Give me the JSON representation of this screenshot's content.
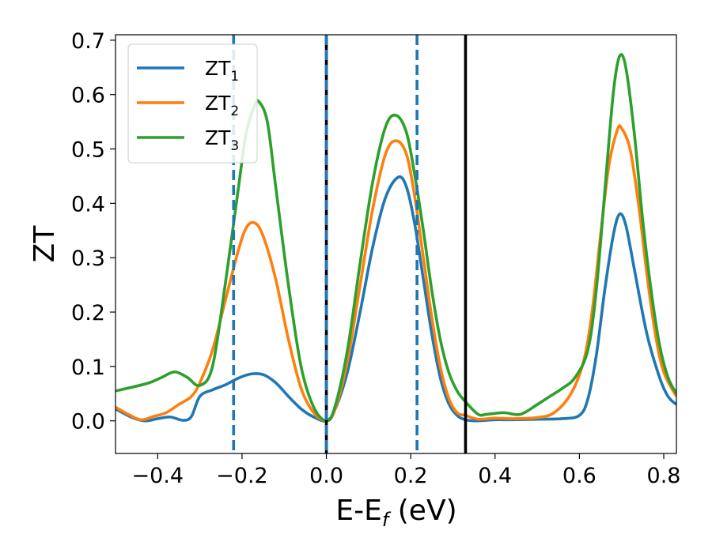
{
  "chart_data": {
    "type": "line",
    "xlabel": "E-E",
    "xlabel_sub": "f",
    "xlabel_unit": " (eV)",
    "ylabel": "ZT",
    "xlim": [
      -0.5,
      0.83
    ],
    "ylim": [
      -0.06,
      0.71
    ],
    "xticks": [
      -0.4,
      -0.2,
      0.0,
      0.2,
      0.4,
      0.6,
      0.8
    ],
    "xtick_labels": [
      "−0.4",
      "−0.2",
      "0.0",
      "0.2",
      "0.4",
      "0.6",
      "0.8"
    ],
    "yticks": [
      0.0,
      0.1,
      0.2,
      0.3,
      0.4,
      0.5,
      0.6,
      0.7
    ],
    "ytick_labels": [
      "0.0",
      "0.1",
      "0.2",
      "0.3",
      "0.4",
      "0.5",
      "0.6",
      "0.7"
    ],
    "grid": false,
    "legend_position": "top-left",
    "series": [
      {
        "name": "ZT",
        "name_sub": "1",
        "color": "#1f77b4",
        "points": [
          [
            -0.5,
            0.022
          ],
          [
            -0.46,
            0.006
          ],
          [
            -0.43,
            0.0
          ],
          [
            -0.4,
            0.004
          ],
          [
            -0.37,
            0.007
          ],
          [
            -0.34,
            0.001
          ],
          [
            -0.32,
            0.008
          ],
          [
            -0.3,
            0.045
          ],
          [
            -0.27,
            0.057
          ],
          [
            -0.24,
            0.066
          ],
          [
            -0.21,
            0.078
          ],
          [
            -0.18,
            0.086
          ],
          [
            -0.15,
            0.085
          ],
          [
            -0.12,
            0.07
          ],
          [
            -0.09,
            0.045
          ],
          [
            -0.06,
            0.022
          ],
          [
            -0.03,
            0.007
          ],
          [
            0.0,
            0.0
          ],
          [
            0.02,
            0.02
          ],
          [
            0.05,
            0.09
          ],
          [
            0.08,
            0.2
          ],
          [
            0.11,
            0.32
          ],
          [
            0.14,
            0.41
          ],
          [
            0.17,
            0.448
          ],
          [
            0.19,
            0.43
          ],
          [
            0.21,
            0.36
          ],
          [
            0.23,
            0.26
          ],
          [
            0.25,
            0.16
          ],
          [
            0.27,
            0.08
          ],
          [
            0.29,
            0.032
          ],
          [
            0.31,
            0.01
          ],
          [
            0.33,
            0.002
          ],
          [
            0.36,
            0.0
          ],
          [
            0.4,
            0.002
          ],
          [
            0.44,
            0.002
          ],
          [
            0.5,
            0.003
          ],
          [
            0.56,
            0.004
          ],
          [
            0.6,
            0.01
          ],
          [
            0.62,
            0.04
          ],
          [
            0.64,
            0.12
          ],
          [
            0.66,
            0.24
          ],
          [
            0.68,
            0.34
          ],
          [
            0.695,
            0.38
          ],
          [
            0.71,
            0.36
          ],
          [
            0.73,
            0.28
          ],
          [
            0.76,
            0.16
          ],
          [
            0.79,
            0.08
          ],
          [
            0.81,
            0.045
          ],
          [
            0.83,
            0.03
          ]
        ]
      },
      {
        "name": "ZT",
        "name_sub": "2",
        "color": "#ff7f0e",
        "points": [
          [
            -0.5,
            0.025
          ],
          [
            -0.47,
            0.012
          ],
          [
            -0.44,
            0.002
          ],
          [
            -0.41,
            0.008
          ],
          [
            -0.38,
            0.015
          ],
          [
            -0.35,
            0.03
          ],
          [
            -0.32,
            0.045
          ],
          [
            -0.3,
            0.07
          ],
          [
            -0.27,
            0.13
          ],
          [
            -0.24,
            0.22
          ],
          [
            -0.21,
            0.31
          ],
          [
            -0.19,
            0.355
          ],
          [
            -0.17,
            0.364
          ],
          [
            -0.15,
            0.34
          ],
          [
            -0.12,
            0.26
          ],
          [
            -0.09,
            0.15
          ],
          [
            -0.06,
            0.06
          ],
          [
            -0.03,
            0.015
          ],
          [
            0.0,
            0.0
          ],
          [
            0.02,
            0.02
          ],
          [
            0.05,
            0.11
          ],
          [
            0.08,
            0.25
          ],
          [
            0.11,
            0.39
          ],
          [
            0.14,
            0.49
          ],
          [
            0.165,
            0.515
          ],
          [
            0.19,
            0.49
          ],
          [
            0.21,
            0.41
          ],
          [
            0.23,
            0.3
          ],
          [
            0.25,
            0.19
          ],
          [
            0.27,
            0.1
          ],
          [
            0.29,
            0.042
          ],
          [
            0.31,
            0.015
          ],
          [
            0.33,
            0.01
          ],
          [
            0.36,
            0.003
          ],
          [
            0.4,
            0.005
          ],
          [
            0.44,
            0.004
          ],
          [
            0.5,
            0.006
          ],
          [
            0.54,
            0.015
          ],
          [
            0.58,
            0.05
          ],
          [
            0.61,
            0.11
          ],
          [
            0.63,
            0.2
          ],
          [
            0.65,
            0.34
          ],
          [
            0.67,
            0.47
          ],
          [
            0.69,
            0.535
          ],
          [
            0.7,
            0.538
          ],
          [
            0.72,
            0.5
          ],
          [
            0.74,
            0.4
          ],
          [
            0.76,
            0.27
          ],
          [
            0.78,
            0.16
          ],
          [
            0.8,
            0.09
          ],
          [
            0.83,
            0.045
          ]
        ]
      },
      {
        "name": "ZT",
        "name_sub": "3",
        "color": "#2ca02c",
        "points": [
          [
            -0.5,
            0.055
          ],
          [
            -0.46,
            0.062
          ],
          [
            -0.42,
            0.07
          ],
          [
            -0.39,
            0.08
          ],
          [
            -0.36,
            0.09
          ],
          [
            -0.33,
            0.08
          ],
          [
            -0.3,
            0.065
          ],
          [
            -0.27,
            0.1
          ],
          [
            -0.24,
            0.25
          ],
          [
            -0.21,
            0.42
          ],
          [
            -0.19,
            0.53
          ],
          [
            -0.17,
            0.58
          ],
          [
            -0.16,
            0.587
          ],
          [
            -0.14,
            0.55
          ],
          [
            -0.12,
            0.43
          ],
          [
            -0.09,
            0.25
          ],
          [
            -0.06,
            0.1
          ],
          [
            -0.03,
            0.025
          ],
          [
            0.0,
            0.0
          ],
          [
            0.02,
            0.025
          ],
          [
            0.05,
            0.13
          ],
          [
            0.08,
            0.29
          ],
          [
            0.11,
            0.44
          ],
          [
            0.14,
            0.54
          ],
          [
            0.165,
            0.562
          ],
          [
            0.19,
            0.53
          ],
          [
            0.21,
            0.45
          ],
          [
            0.23,
            0.35
          ],
          [
            0.25,
            0.24
          ],
          [
            0.27,
            0.15
          ],
          [
            0.29,
            0.09
          ],
          [
            0.31,
            0.055
          ],
          [
            0.33,
            0.035
          ],
          [
            0.36,
            0.012
          ],
          [
            0.38,
            0.012
          ],
          [
            0.42,
            0.015
          ],
          [
            0.46,
            0.012
          ],
          [
            0.5,
            0.03
          ],
          [
            0.53,
            0.045
          ],
          [
            0.56,
            0.06
          ],
          [
            0.59,
            0.08
          ],
          [
            0.62,
            0.13
          ],
          [
            0.64,
            0.24
          ],
          [
            0.66,
            0.42
          ],
          [
            0.68,
            0.6
          ],
          [
            0.695,
            0.67
          ],
          [
            0.71,
            0.65
          ],
          [
            0.73,
            0.53
          ],
          [
            0.75,
            0.37
          ],
          [
            0.77,
            0.24
          ],
          [
            0.79,
            0.14
          ],
          [
            0.81,
            0.08
          ],
          [
            0.83,
            0.05
          ]
        ]
      }
    ],
    "vlines": [
      {
        "x": -0.22,
        "style": "dashed",
        "color": "#1f77b4"
      },
      {
        "x": 0.0,
        "style": "solid",
        "color": "#000000"
      },
      {
        "x": 0.0,
        "style": "dashed",
        "color": "#1f77b4"
      },
      {
        "x": 0.215,
        "style": "dashed",
        "color": "#1f77b4"
      },
      {
        "x": 0.33,
        "style": "solid",
        "color": "#000000"
      }
    ]
  }
}
